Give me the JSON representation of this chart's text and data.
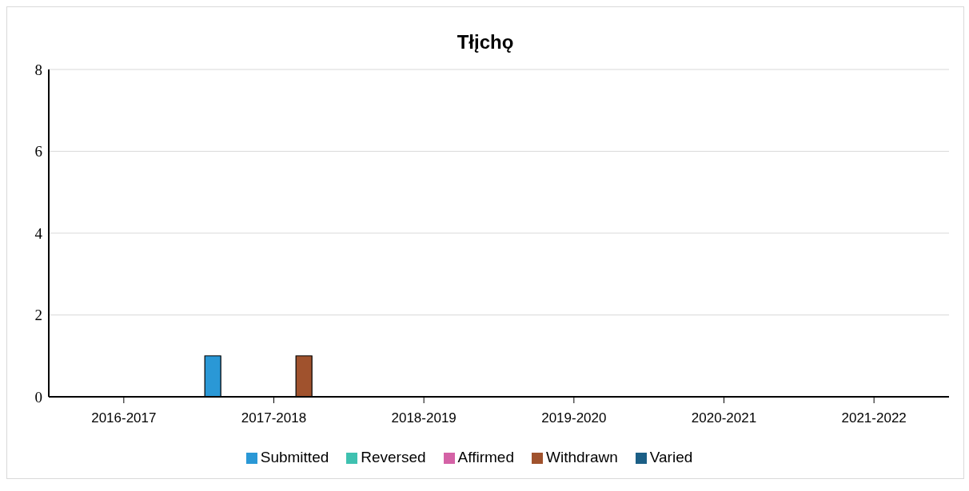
{
  "chart_data": {
    "type": "bar",
    "title": "Tłįchǫ",
    "categories": [
      "2016-2017",
      "2017-2018",
      "2018-2019",
      "2019-2020",
      "2020-2021",
      "2021-2022"
    ],
    "series": [
      {
        "name": "Submitted",
        "color": "#2a98d6",
        "values": [
          0,
          1,
          0,
          0,
          0,
          0
        ]
      },
      {
        "name": "Reversed",
        "color": "#3fc1b0",
        "values": [
          0,
          0,
          0,
          0,
          0,
          0
        ]
      },
      {
        "name": "Affirmed",
        "color": "#d462a6",
        "values": [
          0,
          0,
          0,
          0,
          0,
          0
        ]
      },
      {
        "name": "Withdrawn",
        "color": "#a0522d",
        "values": [
          0,
          1,
          0,
          0,
          0,
          0
        ]
      },
      {
        "name": "Varied",
        "color": "#1b5f86",
        "values": [
          0,
          0,
          0,
          0,
          0,
          0
        ]
      }
    ],
    "ylim": [
      0,
      8
    ],
    "yticks": [
      0,
      2,
      4,
      6,
      8
    ],
    "grid": "y",
    "legend": "bottom"
  }
}
